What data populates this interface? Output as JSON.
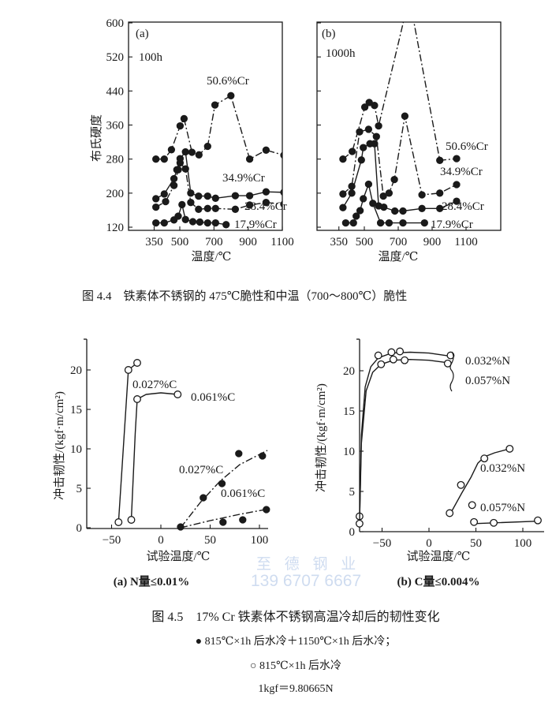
{
  "figure_4_4": {
    "caption": "图 4.4　铁素体不锈钢的 475℃脆性和中温（700～800℃）脆性"
  },
  "figure_4_5": {
    "caption": "图 4.5　17% Cr 铁素体不锈钢高温冷却后的韧性变化",
    "legend_filled": "● 815℃×1h 后水冷＋1150℃×1h 后水冷；",
    "legend_open": "○ 815℃×1h 后水冷",
    "unit_note": "1kgf＝9.80665N"
  },
  "watermark": {
    "company": "至 德 钢 业",
    "phone": "139 6707 6667"
  },
  "colors": {
    "ink": "#1a1a1a",
    "watermark": "#cfdcf0",
    "background": "#ffffff"
  },
  "chart_data": [
    {
      "type": "line",
      "panel": "(a)",
      "condition": "100h",
      "xlabel": "温度/℃",
      "ylabel": "布氏硬度",
      "xticks": [
        350,
        500,
        700,
        900,
        1100
      ],
      "yticks": [
        120,
        200,
        280,
        360,
        440,
        520,
        600
      ],
      "ylim": [
        120,
        600
      ],
      "series": [
        {
          "name": "50.6%Cr",
          "marker": "filled",
          "line": "dash-dot",
          "points": [
            [
              360,
              280
            ],
            [
              409,
              280
            ],
            [
              451,
              302
            ],
            [
              502,
              358
            ],
            [
              525,
              375
            ],
            [
              571,
              296
            ],
            [
              612,
              290
            ],
            [
              663,
              310
            ],
            [
              706,
              407
            ],
            [
              799,
              429
            ],
            [
              909,
              280
            ],
            [
              1005,
              301
            ],
            [
              1109,
              289
            ]
          ]
        },
        {
          "name": "34.9%Cr",
          "marker": "filled",
          "line": "solid",
          "points": [
            [
              360,
              187
            ],
            [
              409,
              198
            ],
            [
              466,
              234
            ],
            [
              483,
              255
            ],
            [
              502,
              281
            ],
            [
              533,
              297
            ],
            [
              564,
              200
            ],
            [
              610,
              193
            ],
            [
              663,
              193
            ],
            [
              709,
              188
            ],
            [
              825,
              194
            ],
            [
              909,
              194
            ],
            [
              1005,
              203
            ],
            [
              1109,
              202
            ]
          ]
        },
        {
          "name": "28.4%Cr",
          "marker": "filled",
          "line": "dash-dot",
          "points": [
            [
              360,
              167
            ],
            [
              417,
              180
            ],
            [
              466,
              218
            ],
            [
              491,
              255
            ],
            [
              502,
              271
            ],
            [
              533,
              257
            ],
            [
              564,
              178
            ],
            [
              610,
              162
            ],
            [
              663,
              164
            ],
            [
              709,
              164
            ],
            [
              825,
              162
            ],
            [
              909,
              172
            ],
            [
              1005,
              178
            ],
            [
              1109,
              174
            ]
          ]
        },
        {
          "name": "17.9%Cr",
          "marker": "filled",
          "line": "solid",
          "points": [
            [
              360,
              130
            ],
            [
              409,
              130
            ],
            [
              466,
              137
            ],
            [
              491,
              146
            ],
            [
              513,
              173
            ],
            [
              533,
              138
            ],
            [
              576,
              133
            ],
            [
              617,
              132
            ],
            [
              663,
              130
            ],
            [
              709,
              130
            ],
            [
              771,
              126
            ]
          ]
        }
      ]
    },
    {
      "type": "line",
      "panel": "(b)",
      "condition": "1000h",
      "xlabel": "温度/℃",
      "ylabel": "",
      "xticks": [
        350,
        500,
        700,
        900,
        1100
      ],
      "yticks": [
        120,
        200,
        280,
        360,
        440,
        520,
        600
      ],
      "ylim": [
        120,
        600
      ],
      "series": [
        {
          "name": "50.6%Cr",
          "marker": "filled",
          "line": "dash-dot",
          "points": [
            [
              374,
              280
            ],
            [
              429,
              298
            ],
            [
              503,
              402
            ],
            [
              529,
              413
            ],
            [
              560,
              406
            ],
            [
              584,
              358
            ],
            [
              765,
              660
            ],
            [
              945,
              277
            ],
            [
              1044,
              281
            ]
          ]
        },
        {
          "name": "34.9%Cr",
          "marker": "filled",
          "line": "dash-dot",
          "points": [
            [
              374,
              198
            ],
            [
              426,
              216
            ],
            [
              472,
              344
            ],
            [
              525,
              350
            ],
            [
              571,
              333
            ],
            [
              612,
              193
            ],
            [
              646,
              200
            ],
            [
              677,
              232
            ],
            [
              739,
              381
            ],
            [
              840,
              196
            ],
            [
              945,
              200
            ],
            [
              1044,
              220
            ]
          ]
        },
        {
          "name": "28.4%Cr",
          "marker": "filled",
          "line": "solid",
          "points": [
            [
              374,
              166
            ],
            [
              426,
              200
            ],
            [
              483,
              278
            ],
            [
              494,
              307
            ],
            [
              533,
              316
            ],
            [
              560,
              316
            ],
            [
              584,
              170
            ],
            [
              615,
              167
            ],
            [
              680,
              158
            ],
            [
              728,
              158
            ],
            [
              840,
              164
            ],
            [
              945,
              164
            ],
            [
              1044,
              181
            ]
          ]
        },
        {
          "name": "17.9%Cr",
          "marker": "filled",
          "line": "solid",
          "points": [
            [
              390,
              130
            ],
            [
              436,
              130
            ],
            [
              452,
              146
            ],
            [
              475,
              159
            ],
            [
              494,
              187
            ],
            [
              525,
              221
            ],
            [
              550,
              176
            ],
            [
              596,
              130
            ],
            [
              646,
              130
            ],
            [
              728,
              130
            ],
            [
              855,
              130
            ]
          ]
        }
      ]
    },
    {
      "type": "scatter",
      "panel": "(a) N量≤0.01%",
      "xlabel": "试验温度/℃",
      "ylabel": "冲击韧性/(kgf·m/cm²)",
      "xticks": [
        -50,
        0,
        50,
        100
      ],
      "yticks": [
        0,
        5,
        10,
        15,
        20
      ],
      "ylim": [
        0,
        24
      ],
      "series": [
        {
          "name": "0.027%C",
          "marker": "open",
          "line": "solid",
          "points": [
            [
              -43,
              0.7
            ],
            [
              -33,
              20
            ],
            [
              -24,
              20.9
            ]
          ],
          "curve": [
            [
              -43,
              0.7
            ],
            [
              -33,
              20
            ],
            [
              -24,
              20.9
            ]
          ]
        },
        {
          "name": "0.061%C",
          "marker": "open",
          "line": "solid",
          "points": [
            [
              -30,
              1
            ],
            [
              -24,
              16.3
            ],
            [
              17,
              16.9
            ]
          ],
          "curve": [
            [
              -30,
              1
            ],
            [
              -26,
              12
            ],
            [
              -24,
              16.3
            ],
            [
              -15,
              16.9
            ],
            [
              0,
              17.1
            ],
            [
              17,
              16.9
            ]
          ]
        },
        {
          "name": "0.027%C",
          "marker": "filled",
          "line": "dash-dot",
          "points": [
            [
              20,
              0.1
            ],
            [
              43,
              3.8
            ],
            [
              62,
              5.6
            ],
            [
              79,
              9.4
            ],
            [
              103,
              9.1
            ]
          ],
          "curve": [
            [
              20,
              0
            ],
            [
              40,
              3.2
            ],
            [
              60,
              5.9
            ],
            [
              80,
              8.0
            ],
            [
              108,
              9.8
            ]
          ]
        },
        {
          "name": "0.061%C",
          "marker": "filled",
          "line": "dash-dot",
          "points": [
            [
              63,
              0.7
            ],
            [
              83,
              1.0
            ],
            [
              107,
              2.3
            ]
          ],
          "curve": [
            [
              20,
              0
            ],
            [
              50,
              0.9
            ],
            [
              80,
              1.7
            ],
            [
              110,
              2.4
            ]
          ]
        }
      ]
    },
    {
      "type": "scatter",
      "panel": "(b) C量≤0.004%",
      "xlabel": "试验温度/℃",
      "ylabel": "冲击韧性/(kgf·m/cm²)",
      "xticks": [
        -50,
        0,
        50,
        100
      ],
      "yticks": [
        0,
        5,
        10,
        15,
        20
      ],
      "ylim": [
        0,
        23
      ],
      "series": [
        {
          "name": "0.032%N",
          "marker": "open",
          "line": "solid",
          "points": [
            [
              -74,
              1.9
            ],
            [
              -54,
              21.9
            ],
            [
              -40,
              22.3
            ],
            [
              -31,
              22.4
            ],
            [
              23,
              21.9
            ]
          ],
          "curve": [
            [
              -74,
              1
            ],
            [
              -72,
              12
            ],
            [
              -68,
              18
            ],
            [
              -62,
              20.5
            ],
            [
              -54,
              21.6
            ],
            [
              -40,
              22.2
            ],
            [
              -20,
              22.3
            ],
            [
              0,
              22.2
            ],
            [
              23,
              21.8
            ]
          ]
        },
        {
          "name": "0.057%N",
          "marker": "open",
          "line": "solid",
          "points": [
            [
              -74,
              1.0
            ],
            [
              -51,
              20.8
            ],
            [
              -38,
              21.4
            ],
            [
              -26,
              21.3
            ],
            [
              20,
              20.9
            ]
          ],
          "curve": [
            [
              -74,
              1
            ],
            [
              -72,
              11
            ],
            [
              -67,
              17.5
            ],
            [
              -60,
              19.8
            ],
            [
              -51,
              20.8
            ],
            [
              -38,
              21.3
            ],
            [
              -20,
              21.4
            ],
            [
              0,
              21.3
            ],
            [
              20,
              21.0
            ]
          ]
        },
        {
          "name": "0.032%N",
          "marker": "open",
          "line": "solid",
          "points": [
            [
              22,
              2.3
            ],
            [
              34,
              5.8
            ],
            [
              59,
              9.1
            ],
            [
              86,
              10.3
            ]
          ],
          "curve": [
            [
              24,
              2.5
            ],
            [
              35,
              4.8
            ],
            [
              45,
              6.8
            ],
            [
              52,
              8.5
            ],
            [
              59,
              9.3
            ],
            [
              70,
              9.8
            ],
            [
              86,
              10.3
            ]
          ]
        },
        {
          "name": "0.057%N",
          "marker": "open",
          "line": "solid",
          "points": [
            [
              46,
              3.3
            ],
            [
              48,
              1.2
            ],
            [
              69,
              1.1
            ],
            [
              116,
              1.4
            ]
          ],
          "curve": [
            [
              48,
              1.0
            ],
            [
              70,
              1.1
            ],
            [
              116,
              1.3
            ]
          ]
        }
      ]
    }
  ]
}
